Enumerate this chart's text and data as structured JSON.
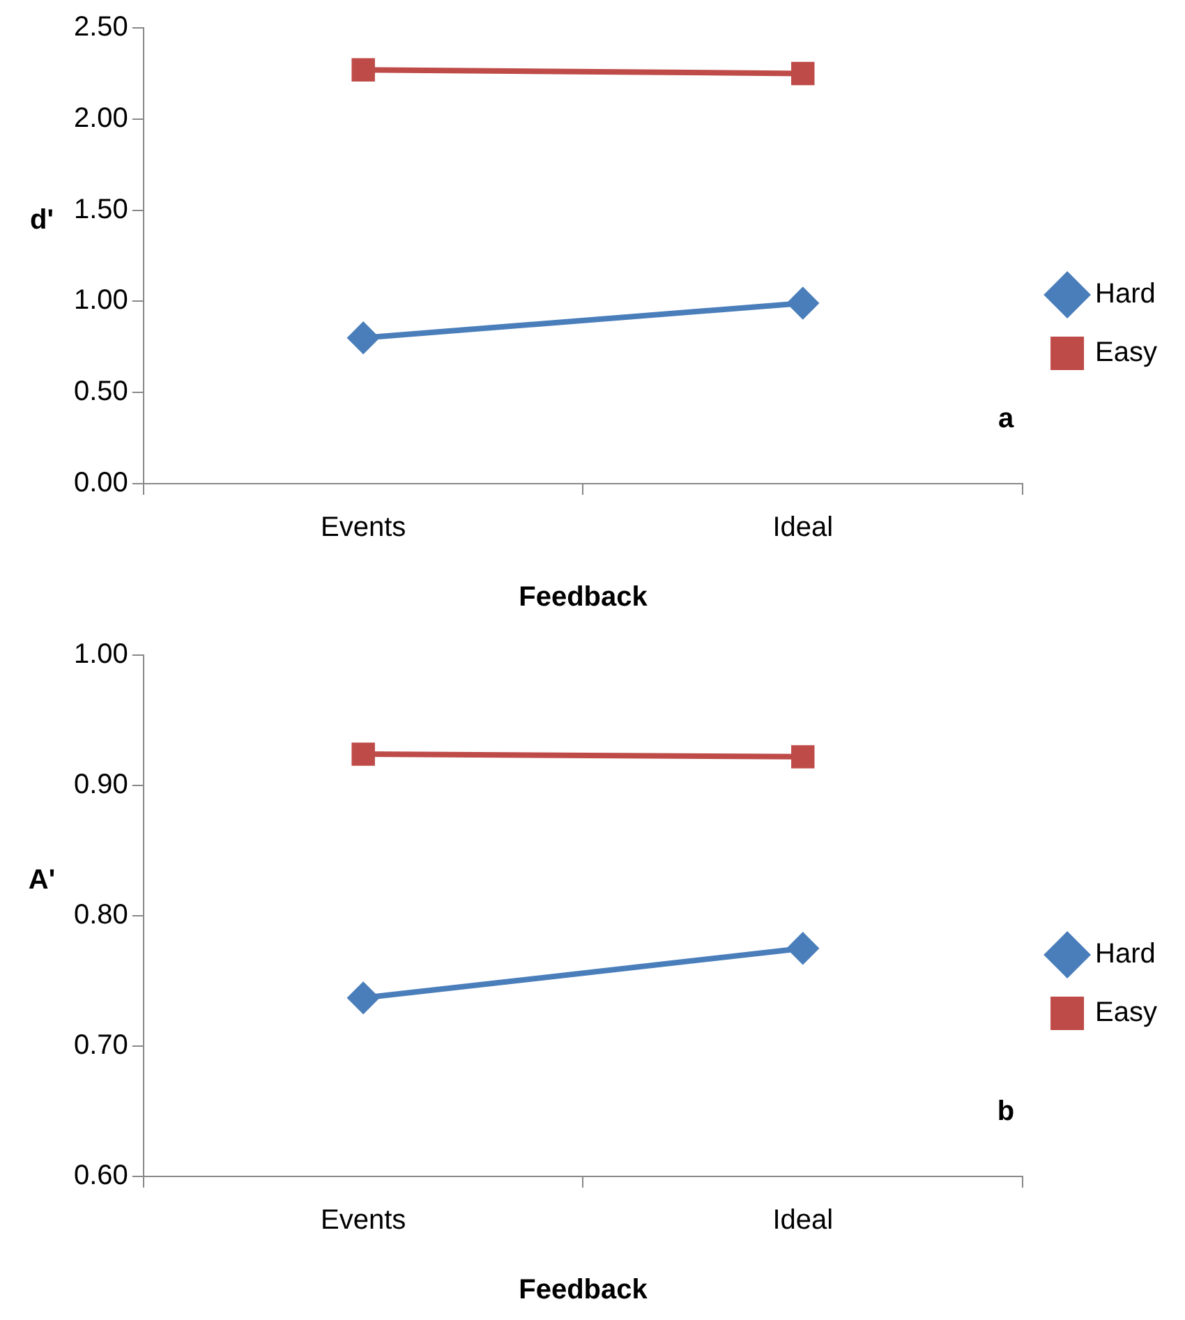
{
  "chart_data": [
    {
      "type": "line",
      "ylabel": "d'",
      "xlabel": "Feedback",
      "categories": [
        "Events",
        "Ideal"
      ],
      "line_style": "solid",
      "grid": false,
      "legend": "right",
      "annotations": [
        "a"
      ],
      "series": [
        {
          "name": "Hard",
          "color": "#4a7ebb",
          "marker": "diamond",
          "values": [
            0.8,
            0.99
          ]
        },
        {
          "name": "Easy",
          "color": "#be4b48",
          "marker": "square",
          "values": [
            2.27,
            2.25
          ]
        }
      ],
      "ylim": [
        0,
        2.5
      ],
      "yticks": [
        {
          "value": 0,
          "label": "0.00"
        },
        {
          "value": 0.5,
          "label": "0.50"
        },
        {
          "value": 1,
          "label": "1.00"
        },
        {
          "value": 1.5,
          "label": "1.50"
        },
        {
          "value": 2,
          "label": "2.00"
        },
        {
          "value": 2.5,
          "label": "2.50"
        }
      ]
    },
    {
      "type": "line",
      "ylabel": "A'",
      "xlabel": "Feedback",
      "categories": [
        "Events",
        "Ideal"
      ],
      "line_style": "solid",
      "grid": false,
      "legend": "right",
      "annotations": [
        "b"
      ],
      "series": [
        {
          "name": "Hard",
          "color": "#4a7ebb",
          "marker": "diamond",
          "values": [
            0.737,
            0.775
          ]
        },
        {
          "name": "Easy",
          "color": "#be4b48",
          "marker": "square",
          "values": [
            0.924,
            0.922
          ]
        }
      ],
      "ylim": [
        0.6,
        1.0
      ],
      "yticks": [
        {
          "value": 0.6,
          "label": "0.60"
        },
        {
          "value": 0.7,
          "label": "0.70"
        },
        {
          "value": 0.8,
          "label": "0.80"
        },
        {
          "value": 0.9,
          "label": "0.90"
        },
        {
          "value": 1.0,
          "label": "1.00"
        }
      ]
    }
  ]
}
